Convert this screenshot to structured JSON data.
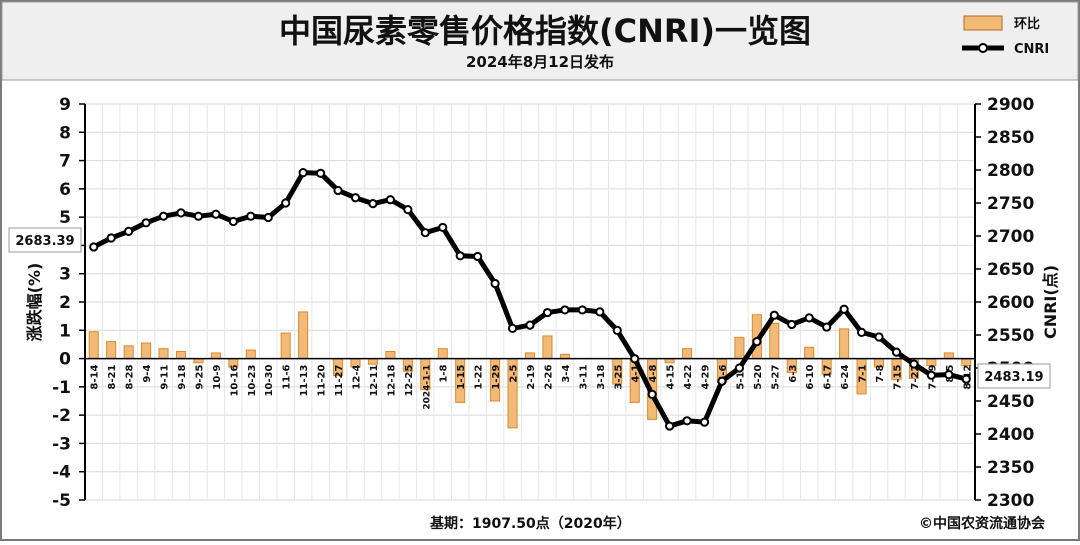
{
  "header": {
    "title": "中国尿素零售价格指数(CNRI)一览图",
    "subtitle": "2024年8月12日发布"
  },
  "legend": {
    "bar_label": "环比",
    "line_label": "CNRI"
  },
  "footer": {
    "base_period": "基期：1907.50点（2020年）",
    "copyright": "©中国农资流通协会"
  },
  "colors": {
    "bar_fill": "#f3b977",
    "bar_stroke": "#d98a2b",
    "line": "#000000",
    "header_bg": "#efefef"
  },
  "chart_data": {
    "type": "bar",
    "title": "中国尿素零售价格指数(CNRI)一览图",
    "subtitle": "2024年8月12日发布",
    "ylabel": "涨跌幅(%)",
    "y2label": "CNRI(点)",
    "ylim": [
      -5,
      9
    ],
    "y2lim": [
      2300,
      2900
    ],
    "yticks": [
      "-5",
      "-4",
      "-3",
      "-2",
      "-1",
      "0",
      "1",
      "2",
      "3",
      "4",
      "5",
      "6",
      "7",
      "8",
      "9"
    ],
    "y2ticks": [
      "2300",
      "2350",
      "2400",
      "2450",
      "2500",
      "2550",
      "2600",
      "2650",
      "2700",
      "2750",
      "2800",
      "2850",
      "2900"
    ],
    "grid": true,
    "legend_position": "top-right",
    "first_value_label": "2683.39",
    "last_value_label": "2483.19",
    "categories": [
      "8-14",
      "8-21",
      "8-28",
      "9-4",
      "9-11",
      "9-18",
      "9-25",
      "10-9",
      "10-16",
      "10-23",
      "10-30",
      "11-6",
      "11-13",
      "11-20",
      "11-27",
      "12-4",
      "12-11",
      "12-18",
      "12-25",
      "2024-1-1",
      "1-8",
      "1-15",
      "1-22",
      "1-29",
      "2-5",
      "2-19",
      "2-26",
      "3-4",
      "3-11",
      "3-18",
      "3-25",
      "4-1",
      "4-8",
      "4-15",
      "4-22",
      "4-29",
      "5-6",
      "5-13",
      "5-20",
      "5-27",
      "6-3",
      "6-10",
      "6-17",
      "6-24",
      "7-1",
      "7-8",
      "7-15",
      "7-22",
      "7-29",
      "8-5",
      "8-12"
    ],
    "series": [
      {
        "name": "环比",
        "kind": "bar",
        "values": [
          0.95,
          0.6,
          0.45,
          0.55,
          0.35,
          0.25,
          -0.15,
          0.2,
          -0.3,
          0.3,
          0.0,
          0.9,
          1.65,
          0.0,
          -0.6,
          -0.3,
          -0.2,
          0.25,
          -0.45,
          -1.1,
          0.35,
          -1.55,
          0.0,
          -1.5,
          -2.45,
          0.2,
          0.8,
          0.15,
          0.0,
          0.0,
          -0.9,
          -1.55,
          -2.15,
          -0.15,
          0.35,
          0.0,
          -0.85,
          0.75,
          1.55,
          1.25,
          -0.5,
          0.4,
          -0.55,
          1.05,
          -1.25,
          -0.3,
          -0.75,
          -0.7,
          -0.25,
          0.2,
          -0.25
        ]
      },
      {
        "name": "CNRI",
        "kind": "line",
        "values": [
          2683.39,
          2697,
          2707,
          2720,
          2730,
          2735,
          2730,
          2733,
          2722,
          2730,
          2728,
          2750,
          2796,
          2795,
          2769,
          2758,
          2749,
          2755,
          2740,
          2705,
          2713,
          2670,
          2669,
          2628,
          2560,
          2565,
          2584,
          2588,
          2588,
          2585,
          2557,
          2514,
          2460,
          2412,
          2420,
          2418,
          2480,
          2500,
          2540,
          2580,
          2566,
          2576,
          2562,
          2589,
          2554,
          2547,
          2524,
          2506,
          2489,
          2490,
          2483.19
        ]
      }
    ]
  }
}
